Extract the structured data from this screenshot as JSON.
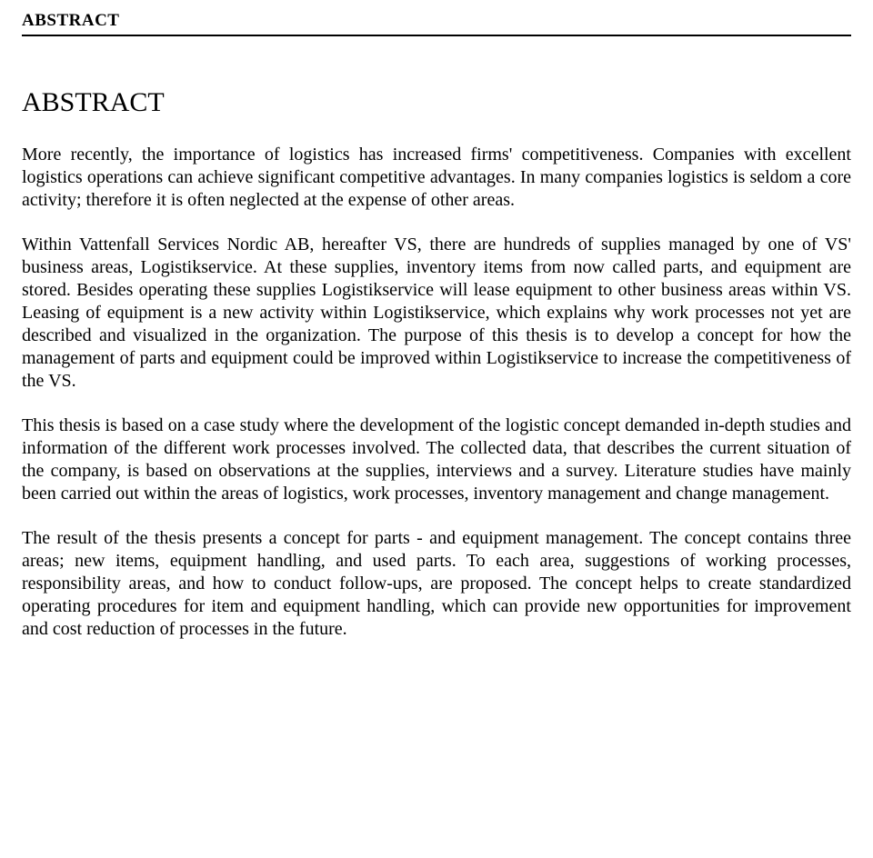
{
  "header": {
    "label": "ABSTRACT"
  },
  "title": "ABSTRACT",
  "paragraphs": {
    "p1": "More recently, the importance of logistics has increased firms' competitiveness. Companies with excellent logistics operations can achieve significant competitive advantages. In many companies logistics is seldom a core activity; therefore it is often neglected at the expense of other areas.",
    "p2": "Within Vattenfall Services Nordic AB, hereafter VS, there are hundreds of supplies managed by one of VS' business areas, Logistikservice. At these supplies, inventory items from now called parts, and equipment are stored. Besides operating these supplies Logistikservice will lease equipment to other business areas within VS. Leasing of equipment is a new activity within Logistikservice, which explains why work processes not yet are described and visualized in the organization. The purpose of this thesis is to develop a concept for how the management of parts and equipment could be improved within Logistikservice to increase the competitiveness of the VS.",
    "p3": "This thesis is based on a case study where the development of the logistic concept demanded in-depth studies and information of the different work processes involved. The collected data, that describes the current situation of the company, is based on observations at the supplies, interviews and a survey. Literature studies have mainly been carried out within the areas of logistics, work processes, inventory management and change management.",
    "p4": "The result of the thesis presents a concept for parts - and equipment management. The concept contains three areas; new items, equipment handling, and used parts. To each area, suggestions of working processes, responsibility areas, and how to conduct follow-ups, are proposed. The concept helps to create standardized operating procedures for item and equipment handling, which can provide new opportunities for improvement and cost reduction of processes in the future."
  },
  "colors": {
    "text": "#000000",
    "background": "#ffffff",
    "rule": "#000000"
  },
  "typography": {
    "font_family": "Times New Roman",
    "header_fontsize_pt": 14,
    "title_fontsize_pt": 22,
    "body_fontsize_pt": 15,
    "header_weight": "bold",
    "title_weight": "normal",
    "body_weight": "normal",
    "body_align": "justify"
  }
}
